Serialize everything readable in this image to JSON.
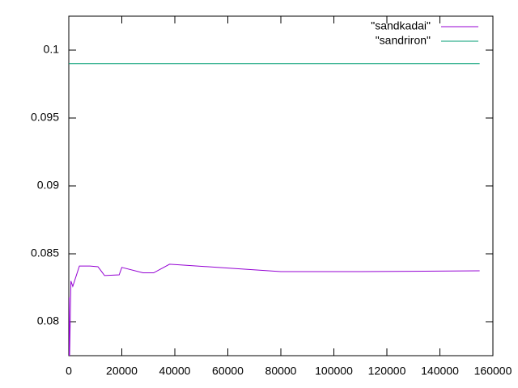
{
  "chart_data": {
    "type": "line",
    "series": [
      {
        "name": "\"sandkadai\"",
        "color": "#9400d3",
        "x": [
          0,
          100,
          300,
          800,
          1500,
          4000,
          8000,
          11000,
          13500,
          19000,
          20000,
          28000,
          32000,
          38000,
          41000,
          60000,
          80000,
          110000,
          155000
        ],
        "values": [
          0.0775,
          0.0818,
          0.0775,
          0.083,
          0.0826,
          0.0841,
          0.0841,
          0.08405,
          0.0834,
          0.08345,
          0.084,
          0.0836,
          0.0836,
          0.08423,
          0.0842,
          0.08395,
          0.08369,
          0.08369,
          0.08375
        ]
      },
      {
        "name": "\"sandriron\"",
        "color": "#009e73",
        "x": [
          0,
          155000
        ],
        "values": [
          0.099,
          0.099
        ]
      }
    ],
    "xlim": [
      0,
      160000
    ],
    "xticks": [
      0,
      20000,
      40000,
      60000,
      80000,
      100000,
      120000,
      140000,
      160000
    ],
    "ylim": [
      0.0775,
      0.1025
    ],
    "yticks": [
      0.08,
      0.085,
      0.09,
      0.095,
      0.1
    ],
    "legend": "top-right",
    "grid": false
  }
}
